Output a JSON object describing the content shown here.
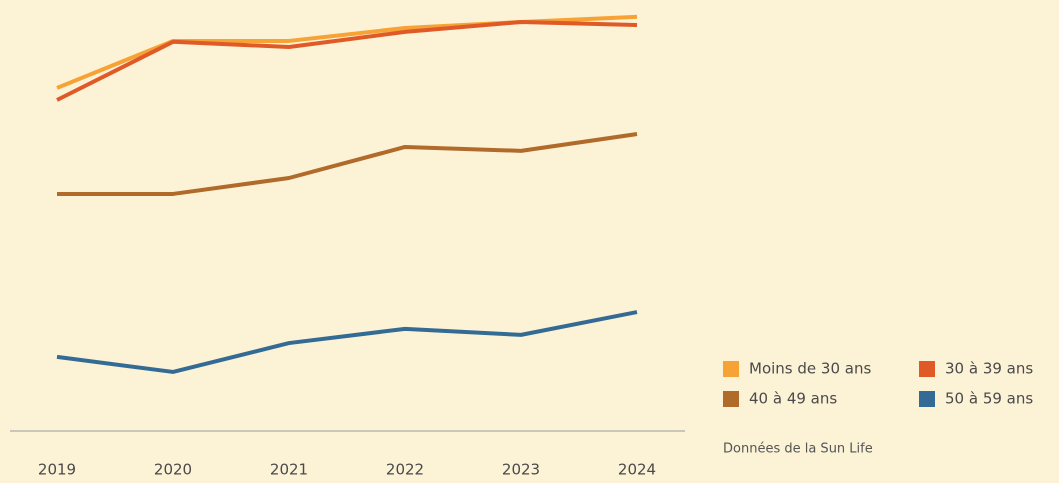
{
  "chart_data": {
    "type": "line",
    "categories": [
      "2019",
      "2020",
      "2021",
      "2022",
      "2023",
      "2024"
    ],
    "series": [
      {
        "name": "Moins de 30 ans",
        "color": "#f7a234",
        "values": [
          79.6,
          90.5,
          90.5,
          93.5,
          94.9,
          96.1
        ]
      },
      {
        "name": "30 à 39 ans",
        "color": "#e05a28",
        "values": [
          76.8,
          90.3,
          89.1,
          92.6,
          94.9,
          94.2
        ]
      },
      {
        "name": "40 à 49 ans",
        "color": "#b06a2a",
        "values": [
          55.0,
          55.0,
          58.7,
          65.9,
          65.0,
          68.9
        ]
      },
      {
        "name": "50 à 59 ans",
        "color": "#336b94",
        "values": [
          17.2,
          13.7,
          20.4,
          23.7,
          22.3,
          27.6
        ]
      }
    ],
    "ylim": [
      0,
      100
    ],
    "source": "Données de la Sun Life"
  }
}
